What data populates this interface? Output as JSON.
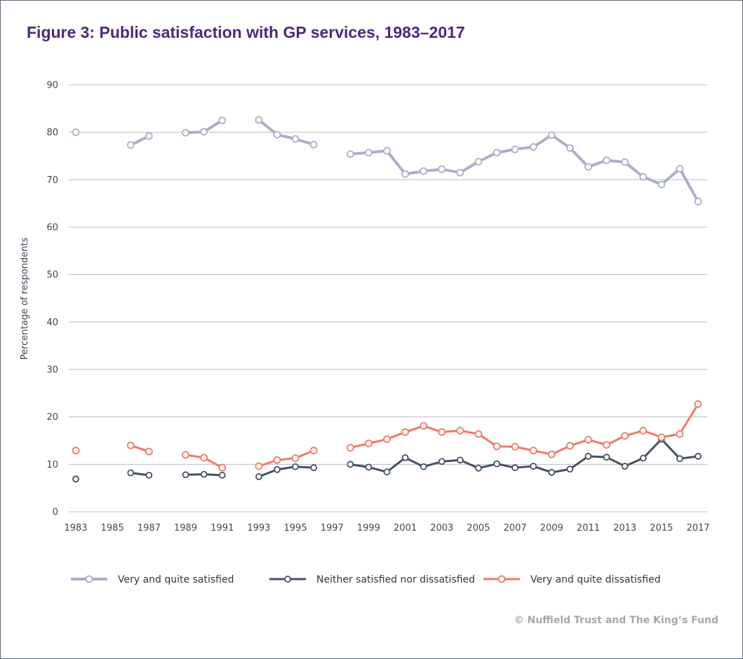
{
  "colors": {
    "title": "#4c2a78",
    "gridline": "#b8bcc2",
    "satisfied": "#a9b0c8",
    "neither": "#46515f",
    "dissatisfied": "#f0786a"
  },
  "chart_data": {
    "type": "line",
    "title": "Figure 3: Public satisfaction with GP services, 1983–2017",
    "ylabel": "Percentage of respondents",
    "xlabel": "",
    "ylim": [
      0,
      90
    ],
    "xlim": [
      1983,
      2017
    ],
    "yticks": [
      "0",
      "10",
      "20",
      "30",
      "40",
      "50",
      "60",
      "70",
      "80",
      "90"
    ],
    "xticks": [
      "1983",
      "1985",
      "1987",
      "1989",
      "1991",
      "1993",
      "1995",
      "1997",
      "1999",
      "2001",
      "2003",
      "2005",
      "2007",
      "2009",
      "2011",
      "2013",
      "2015",
      "2017"
    ],
    "grid": true,
    "legend_position": "bottom",
    "x": [
      1983,
      1984,
      1985,
      1986,
      1987,
      1988,
      1989,
      1990,
      1991,
      1992,
      1993,
      1994,
      1995,
      1996,
      1997,
      1998,
      1999,
      2000,
      2001,
      2002,
      2003,
      2004,
      2005,
      2006,
      2007,
      2008,
      2009,
      2010,
      2011,
      2012,
      2013,
      2014,
      2015,
      2016,
      2017
    ],
    "series": [
      {
        "name": "Very and quite satisfied",
        "color_key": "satisfied",
        "values": [
          80,
          null,
          null,
          77.3,
          79.2,
          null,
          79.9,
          80.1,
          82.5,
          null,
          82.6,
          79.5,
          78.6,
          77.4,
          null,
          75.4,
          75.7,
          76.1,
          71.2,
          71.8,
          72.2,
          71.5,
          73.8,
          75.7,
          76.4,
          76.9,
          79.4,
          76.7,
          72.7,
          74.1,
          73.7,
          70.6,
          69.0,
          72.3,
          65.4
        ],
        "stroke_width": 4,
        "marker_radius": 4.5
      },
      {
        "name": "Neither satisfied nor dissatisfied",
        "color_key": "neither",
        "values": [
          6.9,
          null,
          null,
          8.2,
          7.7,
          null,
          7.8,
          7.9,
          7.7,
          null,
          7.4,
          8.9,
          9.5,
          9.3,
          null,
          10.0,
          9.4,
          8.4,
          11.4,
          9.5,
          10.6,
          10.9,
          9.2,
          10.1,
          9.3,
          9.6,
          8.3,
          9.0,
          11.7,
          11.5,
          9.6,
          11.3,
          15.3,
          11.2,
          11.7
        ],
        "stroke_width": 3,
        "marker_radius": 4
      },
      {
        "name": "Very and quite dissatisfied",
        "color_key": "dissatisfied",
        "values": [
          12.9,
          null,
          null,
          14.0,
          12.7,
          null,
          12.0,
          11.4,
          9.3,
          null,
          9.6,
          10.9,
          11.3,
          12.9,
          null,
          13.5,
          14.4,
          15.3,
          16.8,
          18.1,
          16.8,
          17.1,
          16.4,
          13.8,
          13.7,
          12.9,
          12.1,
          13.9,
          15.2,
          14.1,
          16.0,
          17.1,
          15.7,
          16.4,
          22.7
        ],
        "stroke_width": 3,
        "marker_radius": 4.5
      }
    ]
  },
  "copyright": "© Nuffield Trust and The King’s Fund"
}
